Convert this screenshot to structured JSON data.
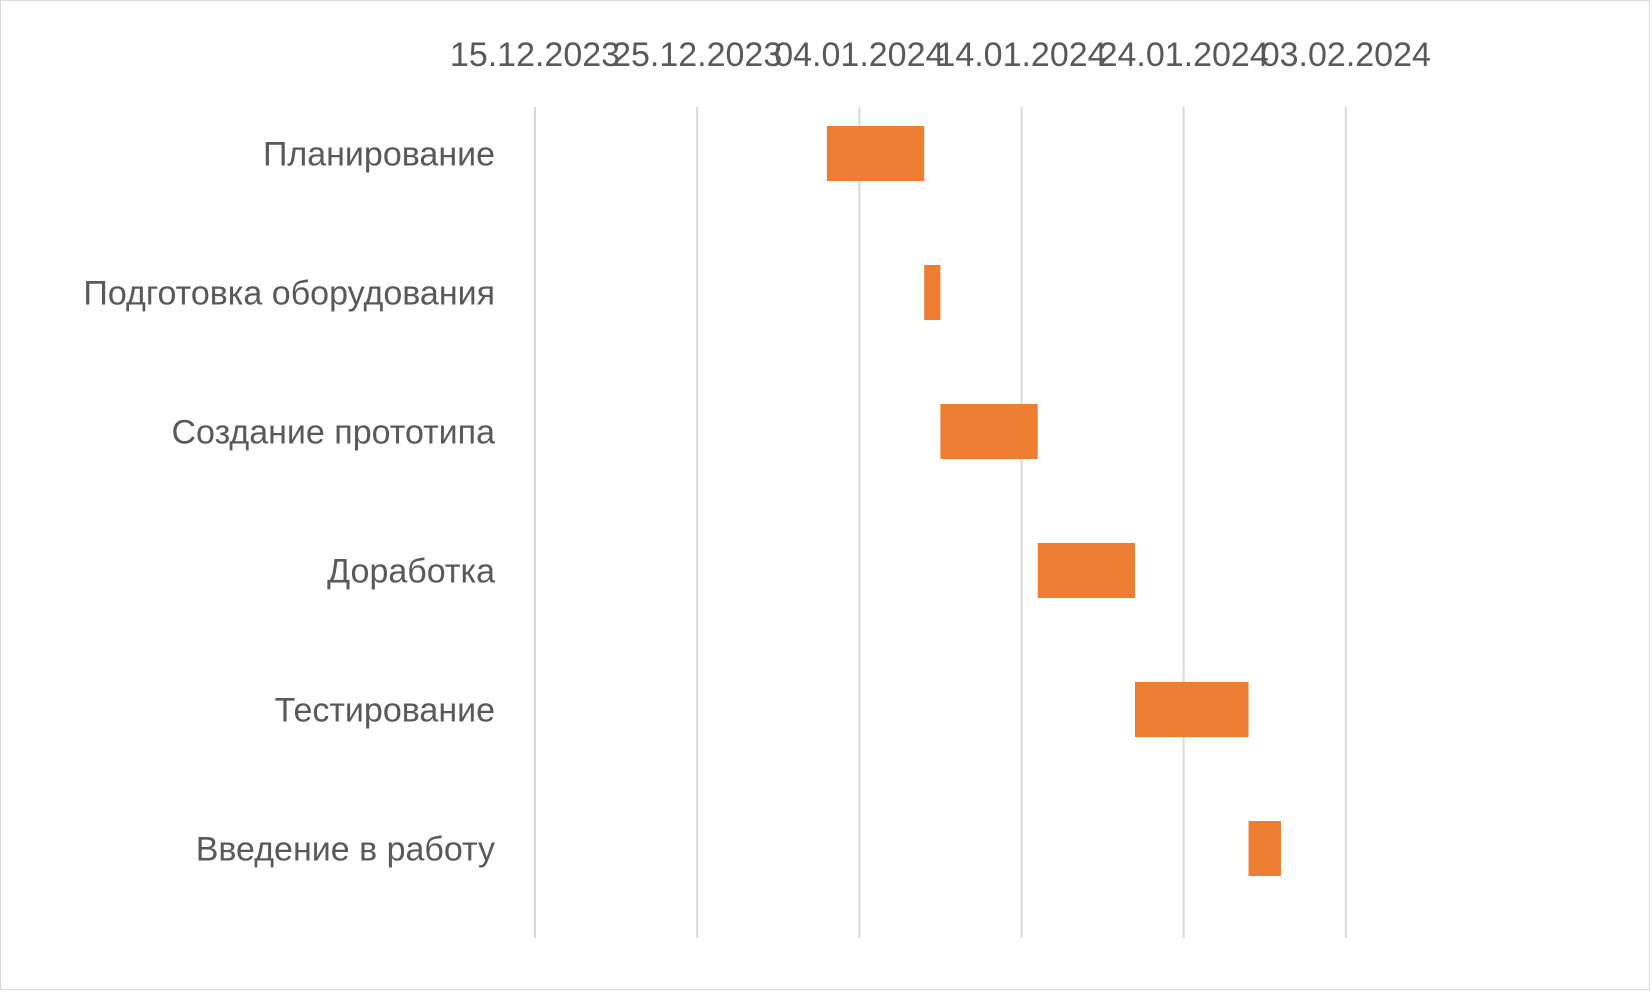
{
  "chart_data": {
    "type": "bar",
    "orientation": "horizontal",
    "variant": "gantt",
    "title": "",
    "xlabel": "",
    "ylabel": "",
    "x_axis_position": "top",
    "x_ticks": [
      "15.12.2023",
      "25.12.2023",
      "04.01.2024",
      "14.01.2024",
      "24.01.2024",
      "03.02.2024"
    ],
    "xlim": [
      "15.12.2023",
      "13.02.2024"
    ],
    "grid": true,
    "legend": "none",
    "bar_color": "#ED7D31",
    "gridline_color": "#D9D9D9",
    "categories": [
      "Планирование",
      "Подготовка оборудования",
      "Создание прототипа",
      "Доработка",
      "Тестирование",
      "Введение в работу"
    ],
    "tasks": [
      {
        "name": "Планирование",
        "start": "02.01.2024",
        "end": "08.01.2024"
      },
      {
        "name": "Подготовка оборудования",
        "start": "08.01.2024",
        "end": "09.01.2024"
      },
      {
        "name": "Создание прототипа",
        "start": "09.01.2024",
        "end": "15.01.2024"
      },
      {
        "name": "Доработка",
        "start": "15.01.2024",
        "end": "21.01.2024"
      },
      {
        "name": "Тестирование",
        "start": "21.01.2024",
        "end": "28.01.2024"
      },
      {
        "name": "Введение в работу",
        "start": "28.01.2024",
        "end": "30.01.2024"
      }
    ]
  }
}
